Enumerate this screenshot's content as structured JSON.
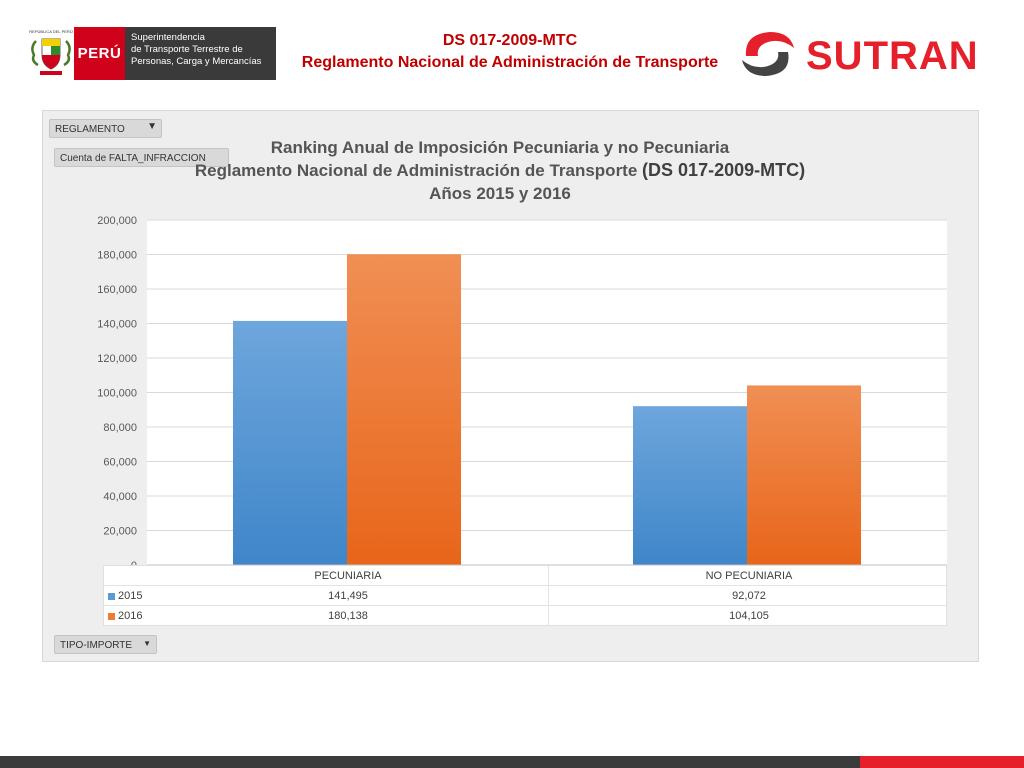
{
  "header": {
    "peru_label": "PERÚ",
    "seal_caption": "REPÚBLICA DEL PERÚ",
    "agency_lines": [
      "Superintendencia",
      "de Transporte Terrestre de",
      "Personas, Carga y Mercancías"
    ],
    "title_line1": "DS 017-2009-MTC",
    "title_line2": "Reglamento Nacional de Administración de Transporte",
    "brand": "SUTRAN"
  },
  "filters": {
    "reglamento": "REGLAMENTO",
    "cuenta": "Cuenta de FALTA_INFRACCION",
    "tipo_importe": "TIPO-IMPORTE"
  },
  "chart_data": {
    "type": "bar",
    "title_line1": "Ranking Anual de Imposición Pecuniaria y no Pecuniaria",
    "title_line2": "Reglamento Nacional de Administración de Transporte",
    "title_line2_b": "(DS 017-2009-MTC)",
    "title_line3": "Años 2015 y 2016",
    "categories": [
      "PECUNIARIA",
      "NO PECUNIARIA"
    ],
    "series": [
      {
        "name": "2015",
        "values": [
          141495,
          92072
        ],
        "labels": [
          "141,495",
          "92,072"
        ],
        "color": "#5b9bd5"
      },
      {
        "name": "2016",
        "values": [
          180138,
          104105
        ],
        "labels": [
          "180,138",
          "104,105"
        ],
        "color": "#ed7d31"
      }
    ],
    "ylim": [
      0,
      200000
    ],
    "yticks": [
      "0",
      "20,000",
      "40,000",
      "60,000",
      "80,000",
      "100,000",
      "120,000",
      "140,000",
      "160,000",
      "180,000",
      "200,000"
    ],
    "grid": true,
    "legend": "data table"
  }
}
